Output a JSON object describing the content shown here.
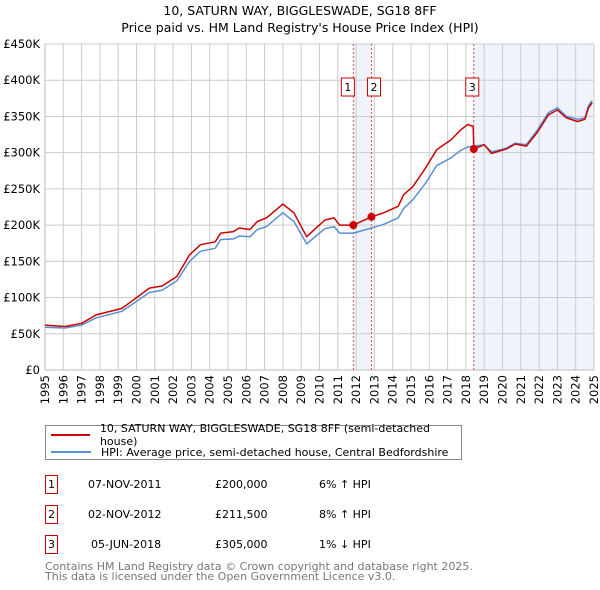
{
  "title": "10, SATURN WAY, BIGGLESWADE, SG18 8FF",
  "subtitle": "Price paid vs. HM Land Registry's House Price Index (HPI)",
  "legend": [
    {
      "label": "10, SATURN WAY, BIGGLESWADE, SG18 8FF (semi-detached house)",
      "color": "#cc0000"
    },
    {
      "label": "HPI: Average price, semi-detached house, Central Bedfordshire",
      "color": "#5b8fd4"
    }
  ],
  "sales": [
    {
      "num": "1",
      "date": "07-NOV-2011",
      "price": "£200,000",
      "hpi": "6% ↑ HPI",
      "year": 2011.85,
      "value": 200000
    },
    {
      "num": "2",
      "date": "02-NOV-2012",
      "price": "£211,500",
      "hpi": "8% ↑ HPI",
      "year": 2012.84,
      "value": 211500
    },
    {
      "num": "3",
      "date": "05-JUN-2018",
      "price": "£305,000",
      "hpi": "1% ↓ HPI",
      "year": 2018.43,
      "value": 305000
    }
  ],
  "footer": [
    "Contains HM Land Registry data © Crown copyright and database right 2025.",
    "This data is licensed under the Open Government Licence v3.0."
  ],
  "chart_data": {
    "type": "line",
    "xlim": [
      1995,
      2025
    ],
    "ylim": [
      0,
      450000
    ],
    "grid": true,
    "x_ticks": [
      "1995",
      "1996",
      "1997",
      "1998",
      "1999",
      "2000",
      "2001",
      "2002",
      "2003",
      "2004",
      "2005",
      "2006",
      "2007",
      "2008",
      "2009",
      "2010",
      "2011",
      "2012",
      "2013",
      "2014",
      "2015",
      "2016",
      "2017",
      "2018",
      "2019",
      "2020",
      "2021",
      "2022",
      "2023",
      "2024",
      "2025"
    ],
    "y_ticks": [
      {
        "value": 0,
        "label": "£0"
      },
      {
        "value": 50000,
        "label": "£50K"
      },
      {
        "value": 100000,
        "label": "£100K"
      },
      {
        "value": 150000,
        "label": "£150K"
      },
      {
        "value": 200000,
        "label": "£200K"
      },
      {
        "value": 250000,
        "label": "£250K"
      },
      {
        "value": 300000,
        "label": "£300K"
      },
      {
        "value": 350000,
        "label": "£350K"
      },
      {
        "value": 400000,
        "label": "£400K"
      },
      {
        "value": 450000,
        "label": "£450K"
      }
    ],
    "shaded_ranges": [
      [
        2011.85,
        2012.84
      ],
      [
        2018.43,
        2025
      ]
    ],
    "x": [
      1995.0,
      1996.1,
      1997.0,
      1997.8,
      1999.2,
      1999.9,
      2000.7,
      2001.4,
      2002.2,
      2002.9,
      2003.5,
      2004.3,
      2004.6,
      2005.3,
      2005.6,
      2006.2,
      2006.6,
      2007.1,
      2008.0,
      2008.6,
      2009.3,
      2009.9,
      2010.3,
      2010.8,
      2011.1,
      2011.85,
      2012.84,
      2013.5,
      2014.3,
      2014.6,
      2015.1,
      2015.8,
      2016.4,
      2017.2,
      2017.7,
      2018.1,
      2018.4,
      2018.43,
      2019.0,
      2019.4,
      2020.2,
      2020.7,
      2021.3,
      2021.9,
      2022.5,
      2023.0,
      2023.5,
      2024.1,
      2024.5,
      2024.7,
      2024.9
    ],
    "series": [
      {
        "name": "10, SATURN WAY, BIGGLESWADE, SG18 8FF (semi-detached house)",
        "color": "#cc0000",
        "values": [
          62000,
          60000,
          64500,
          76000,
          85000,
          98000,
          113000,
          116000,
          129000,
          159000,
          173000,
          177000,
          189000,
          191000,
          196000,
          194000,
          205000,
          210000,
          229000,
          217000,
          184000,
          198000,
          207000,
          210000,
          200000,
          200000,
          211500,
          217000,
          226000,
          242000,
          253000,
          279000,
          304000,
          318000,
          331000,
          339000,
          336000,
          305000,
          311000,
          299000,
          305000,
          312000,
          309000,
          328000,
          352000,
          359000,
          348000,
          343000,
          346000,
          362000,
          369000
        ]
      },
      {
        "name": "HPI: Average price, semi-detached house, Central Bedfordshire",
        "color": "#5b8fd4",
        "values": [
          59000,
          58000,
          62000,
          72000,
          81000,
          93000,
          107000,
          110000,
          123000,
          150000,
          164000,
          168000,
          180000,
          181000,
          185000,
          184000,
          194000,
          198000,
          217000,
          205000,
          174000,
          187000,
          195000,
          198000,
          189000,
          189000,
          196000,
          201000,
          210000,
          223000,
          235000,
          258000,
          282000,
          293000,
          303000,
          308000,
          309000,
          309000,
          311000,
          301000,
          306000,
          313000,
          311000,
          331000,
          355000,
          362000,
          350000,
          346000,
          348000,
          365000,
          372000
        ]
      }
    ]
  }
}
